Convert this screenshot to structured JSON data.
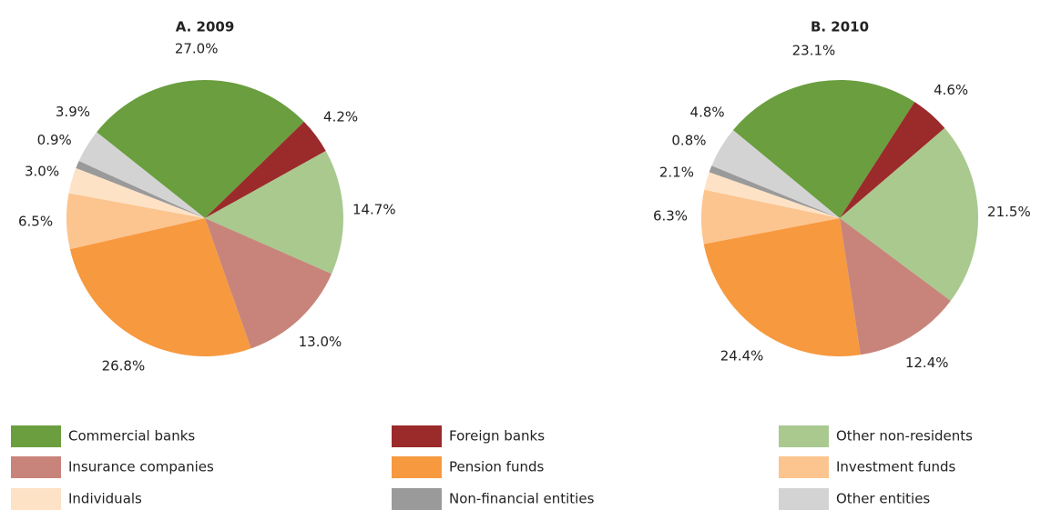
{
  "chart_data": [
    {
      "type": "pie",
      "title": "A. 2009",
      "categories": [
        "Commercial banks",
        "Foreign banks",
        "Other non-residents",
        "Insurance companies",
        "Pension funds",
        "Investment funds",
        "Individuals",
        "Non-financial entities",
        "Other entities"
      ],
      "values": [
        27.0,
        4.2,
        14.7,
        13.0,
        26.8,
        6.5,
        3.0,
        0.9,
        3.9
      ],
      "value_labels": [
        "27.0%",
        "4.2%",
        "14.7%",
        "13.0%",
        "26.8%",
        "6.5%",
        "3.0%",
        "0.9%",
        "3.9%"
      ],
      "colors": [
        "#6a9e3f",
        "#9b2a2a",
        "#a9c98f",
        "#c8847a",
        "#f7993f",
        "#fcc48e",
        "#fde2c6",
        "#9a9a9a",
        "#d3d3d3"
      ]
    },
    {
      "type": "pie",
      "title": "B. 2010",
      "categories": [
        "Commercial banks",
        "Foreign banks",
        "Other non-residents",
        "Insurance companies",
        "Pension funds",
        "Investment funds",
        "Individuals",
        "Non-financial entities",
        "Other entities"
      ],
      "values": [
        23.1,
        4.6,
        21.5,
        12.4,
        24.4,
        6.3,
        2.1,
        0.8,
        4.8
      ],
      "value_labels": [
        "23.1%",
        "4.6%",
        "21.5%",
        "12.4%",
        "24.4%",
        "6.3%",
        "2.1%",
        "0.8%",
        "4.8%"
      ],
      "colors": [
        "#6a9e3f",
        "#9b2a2a",
        "#a9c98f",
        "#c8847a",
        "#f7993f",
        "#fcc48e",
        "#fde2c6",
        "#9a9a9a",
        "#d3d3d3"
      ]
    }
  ]
}
